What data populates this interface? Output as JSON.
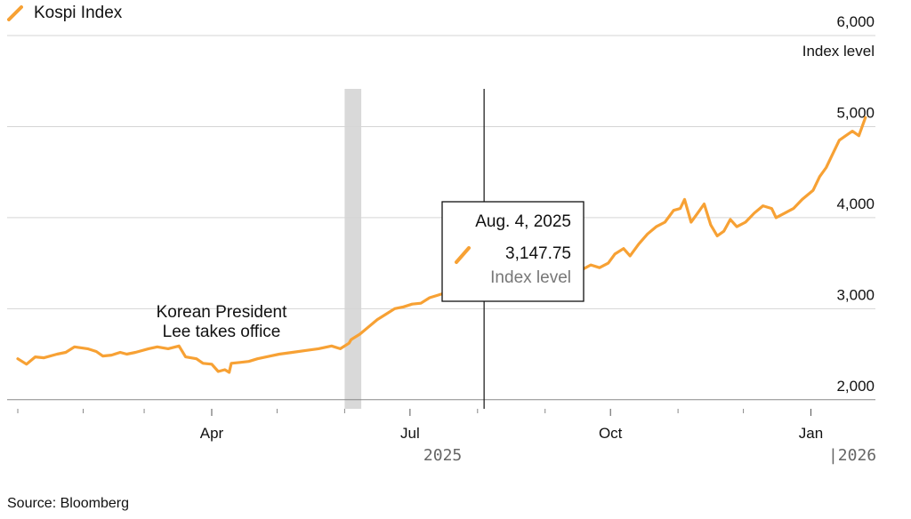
{
  "legend": {
    "label": "Kospi Index",
    "color": "#f7a134"
  },
  "source": "Source: Bloomberg",
  "chart_data": {
    "type": "line",
    "ylabel": "Index level",
    "ylim": [
      1900,
      6000
    ],
    "yticks": [
      2000,
      3000,
      4000,
      5000,
      6000
    ],
    "ytick_labels": [
      "2,000",
      "3,000",
      "4,000",
      "5,000",
      "6,000"
    ],
    "xlim": [
      "2025-01-02",
      "2026-01-31"
    ],
    "xticks": [
      {
        "label": "Apr",
        "date": "2025-04-01"
      },
      {
        "label": "Jul",
        "date": "2025-07-01"
      },
      {
        "label": "Oct",
        "date": "2025-10-01"
      },
      {
        "label": "Jan",
        "date": "2026-01-01"
      }
    ],
    "minor_ticks": [
      "2025-01-02",
      "2025-02-01",
      "2025-03-01",
      "2025-05-01",
      "2025-06-01",
      "2025-08-01",
      "2025-09-01",
      "2025-11-01",
      "2025-12-01"
    ],
    "year_labels": [
      {
        "label": "2025",
        "date": "2025-07-16"
      },
      {
        "label": "|2026",
        "date": "2026-01-20"
      }
    ],
    "grid": true,
    "series": [
      {
        "name": "Kospi Index",
        "color": "#f7a134",
        "points": [
          [
            "2025-01-02",
            2450
          ],
          [
            "2025-01-06",
            2390
          ],
          [
            "2025-01-10",
            2470
          ],
          [
            "2025-01-14",
            2460
          ],
          [
            "2025-01-20",
            2500
          ],
          [
            "2025-01-24",
            2520
          ],
          [
            "2025-01-28",
            2580
          ],
          [
            "2025-02-03",
            2560
          ],
          [
            "2025-02-07",
            2530
          ],
          [
            "2025-02-10",
            2480
          ],
          [
            "2025-02-14",
            2490
          ],
          [
            "2025-02-18",
            2520
          ],
          [
            "2025-02-21",
            2500
          ],
          [
            "2025-02-25",
            2520
          ],
          [
            "2025-03-03",
            2560
          ],
          [
            "2025-03-07",
            2580
          ],
          [
            "2025-03-12",
            2560
          ],
          [
            "2025-03-17",
            2590
          ],
          [
            "2025-03-20",
            2470
          ],
          [
            "2025-03-25",
            2450
          ],
          [
            "2025-03-28",
            2400
          ],
          [
            "2025-04-01",
            2390
          ],
          [
            "2025-04-04",
            2310
          ],
          [
            "2025-04-07",
            2330
          ],
          [
            "2025-04-09",
            2300
          ],
          [
            "2025-04-10",
            2400
          ],
          [
            "2025-04-14",
            2410
          ],
          [
            "2025-04-18",
            2420
          ],
          [
            "2025-04-22",
            2450
          ],
          [
            "2025-04-28",
            2480
          ],
          [
            "2025-05-02",
            2500
          ],
          [
            "2025-05-08",
            2520
          ],
          [
            "2025-05-14",
            2540
          ],
          [
            "2025-05-20",
            2560
          ],
          [
            "2025-05-26",
            2590
          ],
          [
            "2025-05-30",
            2560
          ],
          [
            "2025-06-03",
            2620
          ],
          [
            "2025-06-04",
            2660
          ],
          [
            "2025-06-08",
            2720
          ],
          [
            "2025-06-12",
            2800
          ],
          [
            "2025-06-16",
            2880
          ],
          [
            "2025-06-20",
            2940
          ],
          [
            "2025-06-24",
            3000
          ],
          [
            "2025-06-28",
            3020
          ],
          [
            "2025-07-02",
            3050
          ],
          [
            "2025-07-06",
            3060
          ],
          [
            "2025-07-10",
            3120
          ],
          [
            "2025-07-14",
            3150
          ],
          [
            "2025-07-18",
            3180
          ],
          [
            "2025-07-22",
            3190
          ],
          [
            "2025-07-26",
            3200
          ],
          [
            "2025-07-30",
            3240
          ],
          [
            "2025-08-01",
            3120
          ],
          [
            "2025-08-04",
            3147.75
          ],
          [
            "2025-08-07",
            3190
          ],
          [
            "2025-08-12",
            3200
          ],
          [
            "2025-08-18",
            3150
          ],
          [
            "2025-08-21",
            3130
          ],
          [
            "2025-08-26",
            3180
          ],
          [
            "2025-08-29",
            3160
          ],
          [
            "2025-09-03",
            3190
          ],
          [
            "2025-09-06",
            3200
          ],
          [
            "2025-09-10",
            3250
          ],
          [
            "2025-09-14",
            3400
          ],
          [
            "2025-09-18",
            3430
          ],
          [
            "2025-09-22",
            3480
          ],
          [
            "2025-09-26",
            3450
          ],
          [
            "2025-09-30",
            3500
          ],
          [
            "2025-10-03",
            3600
          ],
          [
            "2025-10-07",
            3660
          ],
          [
            "2025-10-10",
            3580
          ],
          [
            "2025-10-14",
            3710
          ],
          [
            "2025-10-18",
            3820
          ],
          [
            "2025-10-22",
            3900
          ],
          [
            "2025-10-26",
            3950
          ],
          [
            "2025-10-30",
            4080
          ],
          [
            "2025-11-02",
            4100
          ],
          [
            "2025-11-04",
            4200
          ],
          [
            "2025-11-07",
            3950
          ],
          [
            "2025-11-10",
            4050
          ],
          [
            "2025-11-13",
            4150
          ],
          [
            "2025-11-16",
            3920
          ],
          [
            "2025-11-19",
            3800
          ],
          [
            "2025-11-22",
            3850
          ],
          [
            "2025-11-25",
            3980
          ],
          [
            "2025-11-28",
            3900
          ],
          [
            "2025-12-02",
            3950
          ],
          [
            "2025-12-06",
            4050
          ],
          [
            "2025-12-10",
            4130
          ],
          [
            "2025-12-14",
            4100
          ],
          [
            "2025-12-16",
            4000
          ],
          [
            "2025-12-20",
            4050
          ],
          [
            "2025-12-24",
            4100
          ],
          [
            "2025-12-28",
            4200
          ],
          [
            "2026-01-02",
            4300
          ],
          [
            "2026-01-05",
            4450
          ],
          [
            "2026-01-08",
            4550
          ],
          [
            "2026-01-11",
            4700
          ],
          [
            "2026-01-14",
            4850
          ],
          [
            "2026-01-17",
            4900
          ],
          [
            "2026-01-20",
            4950
          ],
          [
            "2026-01-23",
            4900
          ],
          [
            "2026-01-26",
            5100
          ]
        ]
      }
    ],
    "highlight_band": {
      "start": "2025-06-01",
      "end": "2025-06-07"
    },
    "annotation": {
      "lines": [
        "Korean President",
        "Lee takes office"
      ]
    },
    "tooltip": {
      "date": "2025-08-04",
      "title": "Aug. 4, 2025",
      "value": 3147.75,
      "value_label": "3,147.75",
      "unit": "Index level"
    }
  }
}
